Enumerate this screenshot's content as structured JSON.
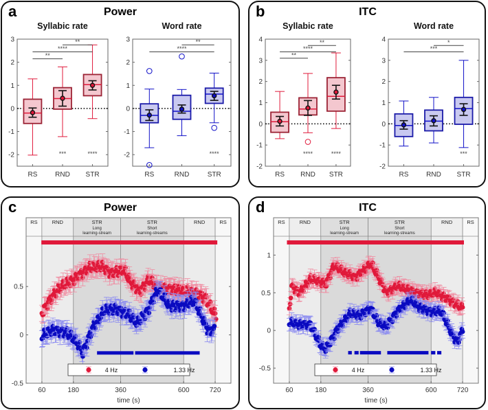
{
  "chart_data": [
    {
      "panel": "a",
      "title": "Power",
      "type": "box",
      "subplots": [
        {
          "title": "Syllabic rate",
          "ylim": [
            -2.5,
            3
          ],
          "yticks": [
            -2,
            -1,
            0,
            1,
            2,
            3
          ],
          "categories": [
            "RS",
            "RND",
            "STR"
          ],
          "color": "#e0193a",
          "light": "#f4c7cf",
          "edge": "#9b2335",
          "boxes": [
            {
              "whisker_low": -2.02,
              "q1": -0.65,
              "median": -0.2,
              "q3": 0.4,
              "whisker_high": 1.28,
              "mean": -0.18,
              "sem_low": -0.38,
              "sem_high": 0.02,
              "outliers": []
            },
            {
              "whisker_low": -1.22,
              "q1": -0.03,
              "median": 0.43,
              "q3": 0.9,
              "whisker_high": 1.8,
              "mean": 0.44,
              "sem_low": 0.1,
              "sem_high": 0.77,
              "outliers": []
            },
            {
              "whisker_low": -0.44,
              "q1": 0.55,
              "median": 1.03,
              "q3": 1.47,
              "whisker_high": 2.75,
              "mean": 1.0,
              "sem_low": 0.8,
              "sem_high": 1.2,
              "outliers": []
            }
          ],
          "brackets": [
            {
              "from": 0,
              "to": 1,
              "label": "**",
              "y": 2.15
            },
            {
              "from": 0,
              "to": 2,
              "label": "****",
              "y": 2.45
            },
            {
              "from": 1,
              "to": 2,
              "label": "**",
              "y": 2.75
            }
          ],
          "bottom_stars": [
            {
              "cat": 1,
              "label": "***"
            },
            {
              "cat": 2,
              "label": "****"
            }
          ]
        },
        {
          "title": "Word rate",
          "ylim": [
            -2.5,
            3
          ],
          "yticks": [
            -2,
            -1,
            0,
            1,
            2,
            3
          ],
          "categories": [
            "RS",
            "RND",
            "STR"
          ],
          "color": "#1010c8",
          "light": "#c9c9f0",
          "edge": "#1a1aa8",
          "boxes": [
            {
              "whisker_low": -1.7,
              "q1": -0.62,
              "median": -0.3,
              "q3": 0.2,
              "whisker_high": 0.84,
              "mean": -0.29,
              "sem_low": -0.52,
              "sem_high": -0.06,
              "outliers": [
                1.62,
                -2.45
              ]
            },
            {
              "whisker_low": -1.18,
              "q1": -0.47,
              "median": -0.12,
              "q3": 0.57,
              "whisker_high": 0.82,
              "mean": -0.03,
              "sem_low": -0.2,
              "sem_high": 0.15,
              "outliers": [
                2.25
              ]
            },
            {
              "whisker_low": -0.62,
              "q1": 0.22,
              "median": 0.62,
              "q3": 0.88,
              "whisker_high": 1.53,
              "mean": 0.55,
              "sem_low": 0.35,
              "sem_high": 0.74,
              "outliers": [
                -0.84
              ]
            }
          ],
          "brackets": [
            {
              "from": 0,
              "to": 2,
              "label": "****",
              "y": 2.45
            },
            {
              "from": 1,
              "to": 2,
              "label": "**",
              "y": 2.75
            }
          ],
          "bottom_stars": [
            {
              "cat": 2,
              "label": "****"
            }
          ]
        }
      ]
    },
    {
      "panel": "b",
      "title": "ITC",
      "type": "box",
      "subplots": [
        {
          "title": "Syllabic rate",
          "ylim": [
            -2,
            4
          ],
          "yticks": [
            -2,
            -1,
            0,
            1,
            2,
            3,
            4
          ],
          "categories": [
            "RS",
            "RND",
            "STR"
          ],
          "color": "#e0193a",
          "light": "#f4c7cf",
          "edge": "#9b2335",
          "boxes": [
            {
              "whisker_low": -0.7,
              "q1": -0.4,
              "median": 0.1,
              "q3": 0.55,
              "whisker_high": 1.53,
              "mean": 0.12,
              "sem_low": -0.1,
              "sem_high": 0.35,
              "outliers": []
            },
            {
              "whisker_low": -0.42,
              "q1": 0.42,
              "median": 0.7,
              "q3": 1.23,
              "whisker_high": 2.38,
              "mean": 0.75,
              "sem_low": 0.4,
              "sem_high": 1.1,
              "outliers": [
                -0.85
              ]
            },
            {
              "whisker_low": -0.22,
              "q1": 0.6,
              "median": 1.3,
              "q3": 2.18,
              "whisker_high": 3.35,
              "mean": 1.5,
              "sem_low": 1.17,
              "sem_high": 1.82,
              "outliers": []
            }
          ],
          "brackets": [
            {
              "from": 0,
              "to": 1,
              "label": "**",
              "y": 3.1
            },
            {
              "from": 0,
              "to": 2,
              "label": "****",
              "y": 3.4
            },
            {
              "from": 1,
              "to": 2,
              "label": "**",
              "y": 3.7
            }
          ],
          "bottom_stars": [
            {
              "cat": 1,
              "label": "****"
            },
            {
              "cat": 2,
              "label": "****"
            }
          ]
        },
        {
          "title": "Word rate",
          "ylim": [
            -2,
            4
          ],
          "yticks": [
            -2,
            -1,
            0,
            1,
            2,
            3,
            4
          ],
          "categories": [
            "RS",
            "RND",
            "STR"
          ],
          "color": "#1010c8",
          "light": "#c9c9f0",
          "edge": "#1a1aa8",
          "boxes": [
            {
              "whisker_low": -1.05,
              "q1": -0.6,
              "median": -0.08,
              "q3": 0.47,
              "whisker_high": 1.08,
              "mean": -0.05,
              "sem_low": -0.25,
              "sem_high": 0.15,
              "outliers": []
            },
            {
              "whisker_low": -0.9,
              "q1": -0.33,
              "median": 0.13,
              "q3": 0.65,
              "whisker_high": 1.25,
              "mean": 0.15,
              "sem_low": -0.1,
              "sem_high": 0.38,
              "outliers": []
            },
            {
              "whisker_low": -1.12,
              "q1": -0.02,
              "median": 0.72,
              "q3": 1.25,
              "whisker_high": 3.0,
              "mean": 0.68,
              "sem_low": 0.4,
              "sem_high": 0.95,
              "outliers": []
            }
          ],
          "brackets": [
            {
              "from": 0,
              "to": 2,
              "label": "***",
              "y": 3.4
            },
            {
              "from": 1,
              "to": 2,
              "label": "*",
              "y": 3.7
            }
          ],
          "bottom_stars": [
            {
              "cat": 2,
              "label": "***"
            }
          ]
        }
      ]
    },
    {
      "panel": "c",
      "title": "Power",
      "type": "scatter",
      "xlabel": "time (s)",
      "xlim": [
        0,
        780
      ],
      "xticks": [
        60,
        180,
        360,
        600,
        720
      ],
      "ylim": [
        -0.5,
        1.02
      ],
      "yticks": [
        -0.5,
        0,
        0.5
      ],
      "phases": [
        {
          "label": "RS",
          "sub1": "",
          "sub2": "",
          "start": 0,
          "end": 60,
          "shade": "#f7f7f7"
        },
        {
          "label": "RND",
          "sub1": "",
          "sub2": "",
          "start": 60,
          "end": 180,
          "shade": "#ececec"
        },
        {
          "label": "STR",
          "sub1": "Long",
          "sub2": "learning-stream",
          "start": 180,
          "end": 360,
          "shade": "#dadada"
        },
        {
          "label": "STR",
          "sub1": "Short",
          "sub2": "learning-streams",
          "start": 360,
          "end": 600,
          "shade": "#dadada"
        },
        {
          "label": "RND",
          "sub1": "",
          "sub2": "",
          "start": 600,
          "end": 720,
          "shade": "#ececec"
        },
        {
          "label": "RS",
          "sub1": "",
          "sub2": "",
          "start": 720,
          "end": 780,
          "shade": "#f7f7f7"
        }
      ],
      "series": [
        {
          "name": "4 Hz",
          "color": "#e0193a",
          "errcolor": "#f08aa0",
          "x": [
            60,
            82,
            125,
            169,
            238,
            290,
            325,
            372,
            398,
            433,
            467,
            502,
            554,
            597,
            649,
            684,
            723
          ],
          "y": [
            0.22,
            0.33,
            0.48,
            0.55,
            0.69,
            0.71,
            0.64,
            0.67,
            0.55,
            0.45,
            0.57,
            0.48,
            0.48,
            0.45,
            0.43,
            0.38,
            0.19
          ],
          "significant": [
            [
              58,
              728
            ]
          ]
        },
        {
          "name": "1.33 Hz",
          "color": "#0a0ac0",
          "errcolor": "#8c8cf0",
          "x": [
            60,
            95,
            150,
            186,
            216,
            255,
            299,
            342,
            385,
            424,
            463,
            502,
            545,
            597,
            641,
            667,
            693,
            719
          ],
          "y": [
            -0.02,
            0.05,
            0.03,
            -0.05,
            -0.18,
            0.08,
            0.25,
            0.27,
            0.22,
            0.12,
            0.25,
            0.47,
            0.3,
            0.3,
            0.35,
            0.2,
            0.05,
            0.05
          ],
          "significant": [
            [
              270,
              409
            ],
            [
              415,
              661
            ]
          ]
        }
      ]
    },
    {
      "panel": "d",
      "title": "ITC",
      "type": "scatter",
      "xlabel": "time (s)",
      "xlim": [
        0,
        780
      ],
      "xticks": [
        60,
        180,
        360,
        600,
        720
      ],
      "ylim": [
        -0.7,
        1.25
      ],
      "yticks": [
        -0.5,
        0,
        0.5,
        1
      ],
      "phases": [
        {
          "label": "RS",
          "sub1": "",
          "sub2": "",
          "start": 0,
          "end": 60,
          "shade": "#f7f7f7"
        },
        {
          "label": "RND",
          "sub1": "",
          "sub2": "",
          "start": 60,
          "end": 180,
          "shade": "#ececec"
        },
        {
          "label": "STR",
          "sub1": "Long",
          "sub2": "learning-stream",
          "start": 180,
          "end": 360,
          "shade": "#dadada"
        },
        {
          "label": "STR",
          "sub1": "Short",
          "sub2": "learning-streams",
          "start": 360,
          "end": 600,
          "shade": "#dadada"
        },
        {
          "label": "RND",
          "sub1": "",
          "sub2": "",
          "start": 600,
          "end": 720,
          "shade": "#ececec"
        },
        {
          "label": "RS",
          "sub1": "",
          "sub2": "",
          "start": 720,
          "end": 780,
          "shade": "#f7f7f7"
        }
      ],
      "series": [
        {
          "name": "4 Hz",
          "color": "#e0193a",
          "errcolor": "#f08aa0",
          "x": [
            60,
            70,
            100,
            140,
            175,
            200,
            230,
            270,
            310,
            345,
            370,
            400,
            430,
            470,
            520,
            580,
            620,
            670,
            720
          ],
          "y": [
            0.29,
            0.59,
            0.5,
            0.68,
            0.65,
            0.62,
            0.86,
            0.77,
            0.71,
            0.8,
            0.89,
            0.71,
            0.5,
            0.59,
            0.53,
            0.47,
            0.5,
            0.41,
            0.29
          ],
          "significant": [
            [
              51,
              725
            ]
          ]
        },
        {
          "name": "1.33 Hz",
          "color": "#0a0ac0",
          "errcolor": "#8c8cf0",
          "x": [
            60,
            100,
            140,
            180,
            200,
            240,
            290,
            330,
            370,
            400,
            430,
            470,
            520,
            560,
            600,
            640,
            680,
            700,
            720
          ],
          "y": [
            0.1,
            0.08,
            0.08,
            -0.2,
            -0.25,
            0.0,
            0.22,
            0.2,
            0.3,
            0.1,
            0.05,
            0.25,
            0.4,
            0.3,
            0.25,
            0.25,
            -0.05,
            -0.15,
            0.0
          ],
          "significant": [
            [
              284,
              298
            ],
            [
              308,
              324
            ],
            [
              329,
              409
            ],
            [
              433,
              590
            ],
            [
              600,
              616
            ],
            [
              623,
              639
            ]
          ]
        }
      ]
    }
  ]
}
